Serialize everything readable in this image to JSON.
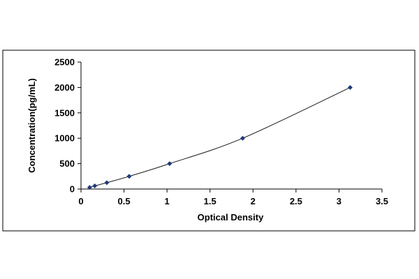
{
  "chart_data": {
    "type": "scatter",
    "title": "",
    "xlabel": "Optical Density",
    "ylabel": "Concentration(pg/mL)",
    "xlim": [
      0,
      3.5
    ],
    "ylim": [
      0,
      2500
    ],
    "x_ticks": [
      0,
      0.5,
      1,
      1.5,
      2,
      2.5,
      3,
      3.5
    ],
    "x_tick_labels": [
      "0",
      "0.5",
      "1",
      "1.5",
      "2",
      "2.5",
      "3",
      "3.5"
    ],
    "y_ticks": [
      0,
      500,
      1000,
      1500,
      2000,
      2500
    ],
    "y_tick_labels": [
      "0",
      "500",
      "1000",
      "1500",
      "2000",
      "2500"
    ],
    "grid": false,
    "legend": "none",
    "trendline": "smooth fit through points",
    "series": [
      {
        "x": [
          0.1,
          0.16,
          0.3,
          0.56,
          1.03,
          1.88,
          3.13
        ],
        "y": [
          31.25,
          62.5,
          125,
          250,
          500,
          1000,
          2000
        ],
        "marker": "diamond",
        "color": "#1f3a7a"
      }
    ],
    "colors": {
      "marker": "#1f3a7a",
      "line": "#1a1a1a",
      "axis": "#000000",
      "frame": "#000000"
    }
  }
}
